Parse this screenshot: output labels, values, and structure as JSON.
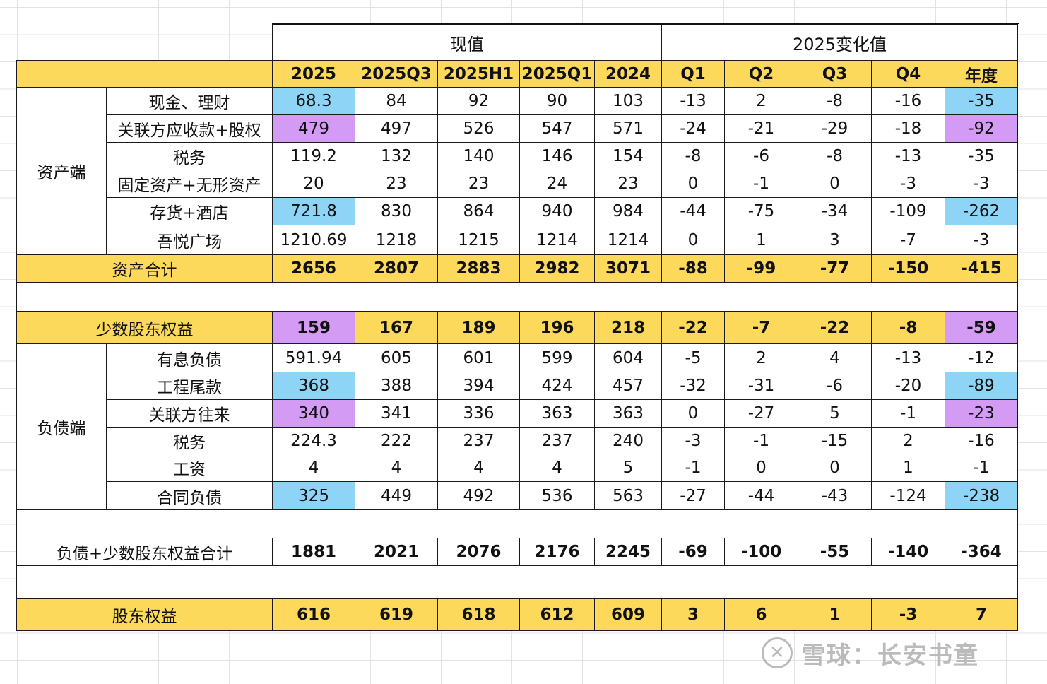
{
  "table": {
    "group_headers": {
      "current": "现值",
      "change": "2025变化值"
    },
    "columns": [
      "2025",
      "2025Q3",
      "2025H1",
      "2025Q1",
      "2024",
      "Q1",
      "Q2",
      "Q3",
      "Q4",
      "年度"
    ],
    "sections": {
      "assets": {
        "label": "资产端",
        "rows": [
          {
            "label": "现金、理财",
            "values": [
              "68.3",
              "84",
              "92",
              "90",
              "103",
              "-13",
              "2",
              "-8",
              "-16",
              "-35"
            ]
          },
          {
            "label": "关联方应收款+股权",
            "values": [
              "479",
              "497",
              "526",
              "547",
              "571",
              "-24",
              "-21",
              "-29",
              "-18",
              "-92"
            ]
          },
          {
            "label": "税务",
            "values": [
              "119.2",
              "132",
              "140",
              "146",
              "154",
              "-8",
              "-6",
              "-8",
              "-13",
              "-35"
            ]
          },
          {
            "label": "固定资产+无形资产",
            "values": [
              "20",
              "23",
              "23",
              "24",
              "23",
              "0",
              "-1",
              "0",
              "-3",
              "-3"
            ]
          },
          {
            "label": "存货+酒店",
            "values": [
              "721.8",
              "830",
              "864",
              "940",
              "984",
              "-44",
              "-75",
              "-34",
              "-109",
              "-262"
            ]
          },
          {
            "label": "吾悦广场",
            "values": [
              "1210.69",
              "1218",
              "1215",
              "1214",
              "1214",
              "0",
              "1",
              "3",
              "-7",
              "-3"
            ]
          }
        ]
      },
      "liabilities": {
        "label": "负债端",
        "rows": [
          {
            "label": "有息负债",
            "values": [
              "591.94",
              "605",
              "601",
              "599",
              "604",
              "-5",
              "2",
              "4",
              "-13",
              "-12"
            ]
          },
          {
            "label": "工程尾款",
            "values": [
              "368",
              "388",
              "394",
              "424",
              "457",
              "-32",
              "-31",
              "-6",
              "-20",
              "-89"
            ]
          },
          {
            "label": "关联方往来",
            "values": [
              "340",
              "341",
              "336",
              "363",
              "363",
              "0",
              "-27",
              "5",
              "-1",
              "-23"
            ]
          },
          {
            "label": "税务",
            "values": [
              "224.3",
              "222",
              "237",
              "237",
              "240",
              "-3",
              "-1",
              "-15",
              "2",
              "-16"
            ]
          },
          {
            "label": "工资",
            "values": [
              "4",
              "4",
              "4",
              "4",
              "5",
              "-1",
              "0",
              "0",
              "1",
              "-1"
            ]
          },
          {
            "label": "合同负债",
            "values": [
              "325",
              "449",
              "492",
              "536",
              "563",
              "-27",
              "-44",
              "-43",
              "-124",
              "-238"
            ]
          }
        ]
      }
    },
    "totals": {
      "assets_total": {
        "label": "资产合计",
        "values": [
          "2656",
          "2807",
          "2883",
          "2982",
          "3071",
          "-88",
          "-99",
          "-77",
          "-150",
          "-415"
        ]
      },
      "minority": {
        "label": "少数股东权益",
        "values": [
          "159",
          "167",
          "189",
          "196",
          "218",
          "-22",
          "-7",
          "-22",
          "-8",
          "-59"
        ]
      },
      "liab_plus_minority": {
        "label": "负债+少数股东权益合计",
        "values": [
          "1881",
          "2021",
          "2076",
          "2176",
          "2245",
          "-69",
          "-100",
          "-55",
          "-140",
          "-364"
        ]
      },
      "equity": {
        "label": "股东权益",
        "values": [
          "616",
          "619",
          "618",
          "612",
          "609",
          "3",
          "6",
          "1",
          "-3",
          "7"
        ]
      }
    },
    "highlight_colors": {
      "yellow": "#fcd95a",
      "blue": "#8dd4f6",
      "purple": "#d49bf4"
    }
  },
  "watermark": {
    "logo_icon": "xueqiu-logo-icon",
    "text": "雪球：长安书童"
  }
}
